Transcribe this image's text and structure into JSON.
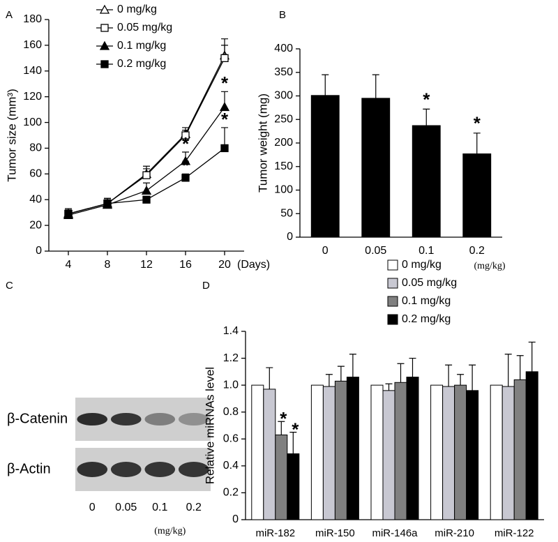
{
  "chart_data": [
    {
      "type": "line",
      "panel": "A",
      "x_label": "(Days)",
      "y_label": "Tumor size (mm³)",
      "x": [
        4,
        8,
        12,
        16,
        20
      ],
      "xlim": [
        2,
        22
      ],
      "xticks": [
        4,
        8,
        12,
        16,
        20
      ],
      "ylim": [
        0,
        180
      ],
      "yticks": [
        0,
        20,
        40,
        60,
        80,
        100,
        120,
        140,
        160,
        180
      ],
      "series": [
        {
          "name": "0 mg/kg",
          "color": "#000000",
          "marker": "triangle",
          "filled": false,
          "values": [
            29,
            37,
            60,
            91,
            152
          ],
          "errors": [
            4,
            4,
            6,
            5,
            13
          ],
          "significance": [
            null,
            null,
            null,
            null,
            null
          ]
        },
        {
          "name": "0.05 mg/kg",
          "color": "#000000",
          "marker": "square",
          "filled": false,
          "values": [
            29,
            37,
            59,
            90,
            150
          ],
          "errors": [
            3,
            4,
            5,
            4,
            10
          ],
          "significance": [
            null,
            null,
            null,
            null,
            null
          ]
        },
        {
          "name": "0.1 mg/kg",
          "color": "#000000",
          "marker": "triangle",
          "filled": true,
          "values": [
            28,
            36,
            47,
            70,
            112
          ],
          "errors": [
            3,
            4,
            6,
            7,
            12
          ],
          "significance": [
            null,
            null,
            null,
            "*",
            "*"
          ]
        },
        {
          "name": "0.2 mg/kg",
          "color": "#000000",
          "marker": "square",
          "filled": true,
          "values": [
            29,
            37,
            40,
            57,
            80
          ],
          "errors": [
            3,
            3,
            2,
            3,
            16
          ],
          "significance": [
            null,
            null,
            null,
            "*",
            "*"
          ]
        }
      ]
    },
    {
      "type": "bar",
      "panel": "B",
      "y_label": "Tumor weight (mg)",
      "x_label": "(mg/kg)",
      "categories": [
        "0",
        "0.05",
        "0.1",
        "0.2"
      ],
      "values": [
        301,
        295,
        237,
        177
      ],
      "errors": [
        44,
        50,
        35,
        44
      ],
      "significance": [
        null,
        null,
        "*",
        "*"
      ],
      "color": "#000000",
      "ylim": [
        0,
        400
      ],
      "yticks": [
        0,
        50,
        100,
        150,
        200,
        250,
        300,
        350,
        400
      ]
    },
    {
      "type": "blot",
      "panel": "C",
      "rows": [
        "β-Catenin",
        "β-Actin"
      ],
      "categories": [
        "0",
        "0.05",
        "0.1",
        "0.2"
      ],
      "x_label": "(mg/kg)"
    },
    {
      "type": "bar",
      "panel": "D",
      "y_label": "Relative miRNAs level",
      "categories": [
        "miR-182",
        "miR-150",
        "miR-146a",
        "miR-210",
        "miR-122"
      ],
      "series": [
        {
          "name": "0 mg/kg",
          "color": "#ffffff",
          "values": [
            1,
            1,
            1,
            1,
            1
          ]
        },
        {
          "name": "0.05 mg/kg",
          "color": "#c8c8d2",
          "values": [
            0.97,
            0.99,
            0.96,
            0.99,
            0.99
          ],
          "errors": [
            0.16,
            0.09,
            0.05,
            0.16,
            0.24
          ],
          "significance": [
            null,
            null,
            null,
            null,
            null
          ]
        },
        {
          "name": "0.1 mg/kg",
          "color": "#808080",
          "values": [
            0.63,
            1.03,
            1.02,
            1.0,
            1.04
          ],
          "errors": [
            0.1,
            0.11,
            0.14,
            0.08,
            0.18
          ],
          "significance": [
            "*",
            null,
            null,
            null,
            null
          ]
        },
        {
          "name": "0.2 mg/kg",
          "color": "#000000",
          "values": [
            0.49,
            1.06,
            1.06,
            0.96,
            1.1
          ],
          "errors": [
            0.16,
            0.17,
            0.14,
            0.19,
            0.22
          ],
          "significance": [
            "*",
            null,
            null,
            null,
            null
          ]
        }
      ],
      "ylim": [
        0,
        1.4
      ],
      "yticks": [
        0,
        0.2,
        0.4,
        0.6,
        0.8,
        {
          "value": 1,
          "label": "1.0"
        },
        1.2,
        1.4
      ]
    }
  ]
}
